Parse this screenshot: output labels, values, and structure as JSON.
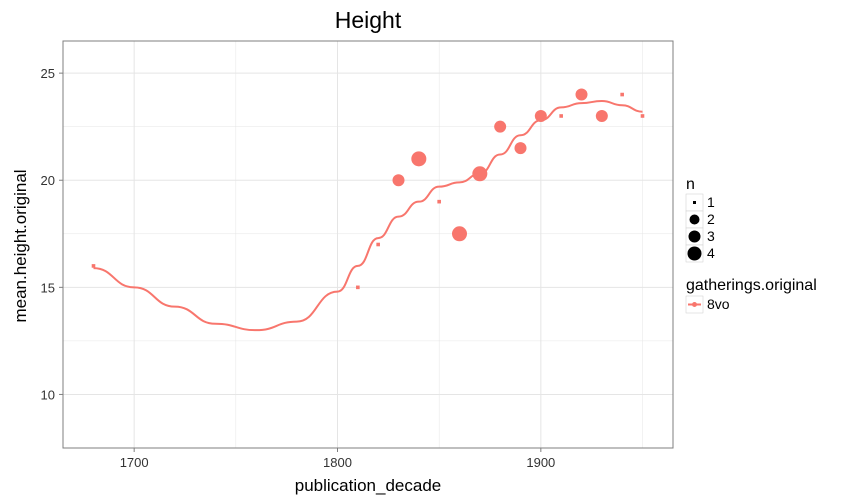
{
  "chart_data": {
    "type": "scatter",
    "title": "Height",
    "xlabel": "publication_decade",
    "ylabel": "mean.height.original",
    "xlim": [
      1665,
      1965
    ],
    "ylim": [
      7.5,
      26.5
    ],
    "x_ticks": [
      1700,
      1800,
      1900
    ],
    "y_ticks": [
      10,
      15,
      20,
      25
    ],
    "grid": true,
    "series": [
      {
        "name": "8vo",
        "color": "#f8766d",
        "points": [
          {
            "x": 1680,
            "y": 16.0,
            "n": 1
          },
          {
            "x": 1810,
            "y": 15.0,
            "n": 1
          },
          {
            "x": 1820,
            "y": 17.0,
            "n": 1
          },
          {
            "x": 1830,
            "y": 20.0,
            "n": 2
          },
          {
            "x": 1840,
            "y": 21.0,
            "n": 3
          },
          {
            "x": 1850,
            "y": 19.0,
            "n": 1
          },
          {
            "x": 1860,
            "y": 17.5,
            "n": 3
          },
          {
            "x": 1870,
            "y": 20.3,
            "n": 3
          },
          {
            "x": 1880,
            "y": 22.5,
            "n": 2
          },
          {
            "x": 1890,
            "y": 21.5,
            "n": 2
          },
          {
            "x": 1900,
            "y": 23.0,
            "n": 2
          },
          {
            "x": 1910,
            "y": 23.0,
            "n": 1
          },
          {
            "x": 1920,
            "y": 24.0,
            "n": 2
          },
          {
            "x": 1930,
            "y": 23.0,
            "n": 2
          },
          {
            "x": 1940,
            "y": 24.0,
            "n": 1
          },
          {
            "x": 1950,
            "y": 23.0,
            "n": 1
          }
        ],
        "smooth": [
          {
            "x": 1680,
            "y": 15.9
          },
          {
            "x": 1700,
            "y": 15.0
          },
          {
            "x": 1720,
            "y": 14.1
          },
          {
            "x": 1740,
            "y": 13.3
          },
          {
            "x": 1760,
            "y": 13.0
          },
          {
            "x": 1780,
            "y": 13.4
          },
          {
            "x": 1800,
            "y": 14.8
          },
          {
            "x": 1810,
            "y": 16.0
          },
          {
            "x": 1820,
            "y": 17.3
          },
          {
            "x": 1830,
            "y": 18.3
          },
          {
            "x": 1840,
            "y": 19.0
          },
          {
            "x": 1850,
            "y": 19.7
          },
          {
            "x": 1860,
            "y": 19.9
          },
          {
            "x": 1870,
            "y": 20.3
          },
          {
            "x": 1880,
            "y": 21.2
          },
          {
            "x": 1890,
            "y": 22.1
          },
          {
            "x": 1900,
            "y": 22.8
          },
          {
            "x": 1910,
            "y": 23.4
          },
          {
            "x": 1920,
            "y": 23.6
          },
          {
            "x": 1930,
            "y": 23.7
          },
          {
            "x": 1940,
            "y": 23.5
          },
          {
            "x": 1950,
            "y": 23.2
          }
        ]
      }
    ],
    "legends": {
      "size": {
        "title": "n",
        "entries": [
          {
            "label": "1",
            "n": 1
          },
          {
            "label": "2",
            "n": 2
          },
          {
            "label": "3",
            "n": 3
          },
          {
            "label": "4",
            "n": 4
          }
        ]
      },
      "color": {
        "title": "gatherings.original",
        "entries": [
          {
            "label": "8vo",
            "color": "#f8766d"
          }
        ]
      },
      "placement": "right"
    },
    "colors": {
      "panel_border": "#7f7f7f",
      "grid": "#e5e5e5",
      "size_legend_fill": "#000000"
    }
  }
}
